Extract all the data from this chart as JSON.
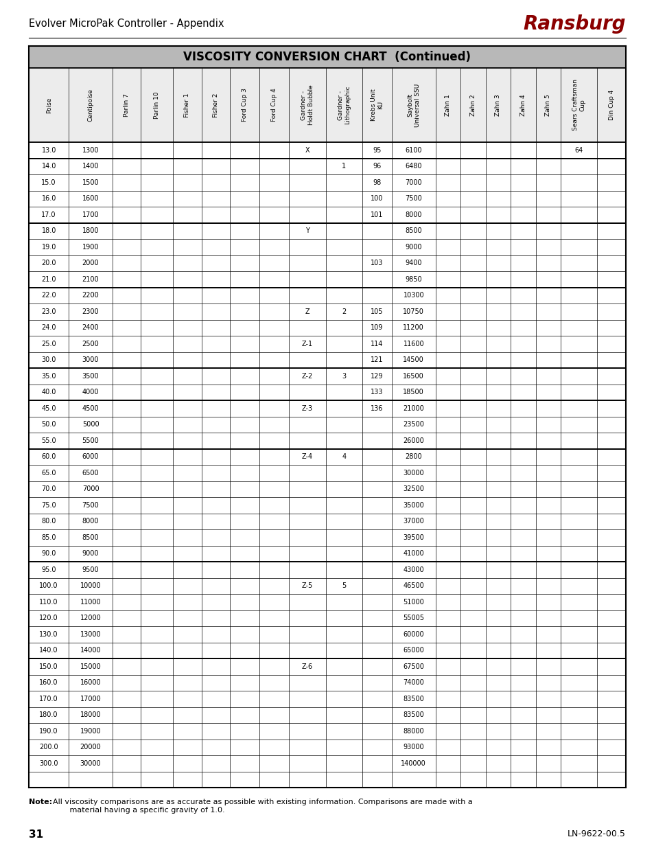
{
  "title": "VISCOSITY CONVERSION CHART  (Continued)",
  "header_bg": "#b8b8b8",
  "page_title": "Evolver MicroPak Controller - Appendix",
  "brand": "Ransburg",
  "page_num": "31",
  "doc_num": "LN-9622-00.5",
  "note_bold": "Note:",
  "note_rest": "  All viscosity comparisons are as accurate as possible with existing information. Comparisons are made with a\n         material having a specific gravity of 1.0.",
  "columns": [
    "Poise",
    "Centipoise",
    "Parlin 7",
    "Parlin 10",
    "Fisher 1",
    "Fisher 2",
    "Ford Cup 3",
    "Ford Cup 4",
    "Gardner -\nHoldt Bubble",
    "Gardner -\nLithographic",
    "Krebs Unit\nKU",
    "Saybolt\nUniversal SSU",
    "Zahn 1",
    "Zahn 2",
    "Zahn 3",
    "Zahn 4",
    "Zahn 5",
    "Sears Craftsman\nCup",
    "Din Cup 4"
  ],
  "col_widths_rel": [
    1.15,
    1.25,
    0.82,
    0.92,
    0.82,
    0.82,
    0.85,
    0.85,
    1.05,
    1.05,
    0.85,
    1.25,
    0.72,
    0.72,
    0.72,
    0.72,
    0.72,
    1.05,
    0.82
  ],
  "rows": [
    [
      "13.0",
      "1300",
      "",
      "",
      "",
      "",
      "",
      "",
      "X",
      "",
      "95",
      "6100",
      "",
      "",
      "",
      "",
      "",
      "64",
      ""
    ],
    [
      "14.0",
      "1400",
      "",
      "",
      "",
      "",
      "",
      "",
      "",
      "1",
      "96",
      "6480",
      "",
      "",
      "",
      "",
      "",
      "",
      ""
    ],
    [
      "15.0",
      "1500",
      "",
      "",
      "",
      "",
      "",
      "",
      "",
      "",
      "98",
      "7000",
      "",
      "",
      "",
      "",
      "",
      "",
      ""
    ],
    [
      "16.0",
      "1600",
      "",
      "",
      "",
      "",
      "",
      "",
      "",
      "",
      "100",
      "7500",
      "",
      "",
      "",
      "",
      "",
      "",
      ""
    ],
    [
      "17.0",
      "1700",
      "",
      "",
      "",
      "",
      "",
      "",
      "",
      "",
      "101",
      "8000",
      "",
      "",
      "",
      "",
      "",
      "",
      ""
    ],
    [
      "18.0",
      "1800",
      "",
      "",
      "",
      "",
      "",
      "",
      "Y",
      "",
      "",
      "8500",
      "",
      "",
      "",
      "",
      "",
      "",
      ""
    ],
    [
      "19.0",
      "1900",
      "",
      "",
      "",
      "",
      "",
      "",
      "",
      "",
      "",
      "9000",
      "",
      "",
      "",
      "",
      "",
      "",
      ""
    ],
    [
      "20.0",
      "2000",
      "",
      "",
      "",
      "",
      "",
      "",
      "",
      "",
      "103",
      "9400",
      "",
      "",
      "",
      "",
      "",
      "",
      ""
    ],
    [
      "21.0",
      "2100",
      "",
      "",
      "",
      "",
      "",
      "",
      "",
      "",
      "",
      "9850",
      "",
      "",
      "",
      "",
      "",
      "",
      ""
    ],
    [
      "22.0",
      "2200",
      "",
      "",
      "",
      "",
      "",
      "",
      "",
      "",
      "",
      "10300",
      "",
      "",
      "",
      "",
      "",
      "",
      ""
    ],
    [
      "23.0",
      "2300",
      "",
      "",
      "",
      "",
      "",
      "",
      "Z",
      "2",
      "105",
      "10750",
      "",
      "",
      "",
      "",
      "",
      "",
      ""
    ],
    [
      "24.0",
      "2400",
      "",
      "",
      "",
      "",
      "",
      "",
      "",
      "",
      "109",
      "11200",
      "",
      "",
      "",
      "",
      "",
      "",
      ""
    ],
    [
      "25.0",
      "2500",
      "",
      "",
      "",
      "",
      "",
      "",
      "Z-1",
      "",
      "114",
      "11600",
      "",
      "",
      "",
      "",
      "",
      "",
      ""
    ],
    [
      "30.0",
      "3000",
      "",
      "",
      "",
      "",
      "",
      "",
      "",
      "",
      "121",
      "14500",
      "",
      "",
      "",
      "",
      "",
      "",
      ""
    ],
    [
      "35.0",
      "3500",
      "",
      "",
      "",
      "",
      "",
      "",
      "Z-2",
      "3",
      "129",
      "16500",
      "",
      "",
      "",
      "",
      "",
      "",
      ""
    ],
    [
      "40.0",
      "4000",
      "",
      "",
      "",
      "",
      "",
      "",
      "",
      "",
      "133",
      "18500",
      "",
      "",
      "",
      "",
      "",
      "",
      ""
    ],
    [
      "45.0",
      "4500",
      "",
      "",
      "",
      "",
      "",
      "",
      "Z-3",
      "",
      "136",
      "21000",
      "",
      "",
      "",
      "",
      "",
      "",
      ""
    ],
    [
      "50.0",
      "5000",
      "",
      "",
      "",
      "",
      "",
      "",
      "",
      "",
      "",
      "23500",
      "",
      "",
      "",
      "",
      "",
      "",
      ""
    ],
    [
      "55.0",
      "5500",
      "",
      "",
      "",
      "",
      "",
      "",
      "",
      "",
      "",
      "26000",
      "",
      "",
      "",
      "",
      "",
      "",
      ""
    ],
    [
      "60.0",
      "6000",
      "",
      "",
      "",
      "",
      "",
      "",
      "Z-4",
      "4",
      "",
      "2800",
      "",
      "",
      "",
      "",
      "",
      "",
      ""
    ],
    [
      "65.0",
      "6500",
      "",
      "",
      "",
      "",
      "",
      "",
      "",
      "",
      "",
      "30000",
      "",
      "",
      "",
      "",
      "",
      "",
      ""
    ],
    [
      "70.0",
      "7000",
      "",
      "",
      "",
      "",
      "",
      "",
      "",
      "",
      "",
      "32500",
      "",
      "",
      "",
      "",
      "",
      "",
      ""
    ],
    [
      "75.0",
      "7500",
      "",
      "",
      "",
      "",
      "",
      "",
      "",
      "",
      "",
      "35000",
      "",
      "",
      "",
      "",
      "",
      "",
      ""
    ],
    [
      "80.0",
      "8000",
      "",
      "",
      "",
      "",
      "",
      "",
      "",
      "",
      "",
      "37000",
      "",
      "",
      "",
      "",
      "",
      "",
      ""
    ],
    [
      "85.0",
      "8500",
      "",
      "",
      "",
      "",
      "",
      "",
      "",
      "",
      "",
      "39500",
      "",
      "",
      "",
      "",
      "",
      "",
      ""
    ],
    [
      "90.0",
      "9000",
      "",
      "",
      "",
      "",
      "",
      "",
      "",
      "",
      "",
      "41000",
      "",
      "",
      "",
      "",
      "",
      "",
      ""
    ],
    [
      "95.0",
      "9500",
      "",
      "",
      "",
      "",
      "",
      "",
      "",
      "",
      "",
      "43000",
      "",
      "",
      "",
      "",
      "",
      "",
      ""
    ],
    [
      "100.0",
      "10000",
      "",
      "",
      "",
      "",
      "",
      "",
      "Z-5",
      "5",
      "",
      "46500",
      "",
      "",
      "",
      "",
      "",
      "",
      ""
    ],
    [
      "110.0",
      "11000",
      "",
      "",
      "",
      "",
      "",
      "",
      "",
      "",
      "",
      "51000",
      "",
      "",
      "",
      "",
      "",
      "",
      ""
    ],
    [
      "120.0",
      "12000",
      "",
      "",
      "",
      "",
      "",
      "",
      "",
      "",
      "",
      "55005",
      "",
      "",
      "",
      "",
      "",
      "",
      ""
    ],
    [
      "130.0",
      "13000",
      "",
      "",
      "",
      "",
      "",
      "",
      "",
      "",
      "",
      "60000",
      "",
      "",
      "",
      "",
      "",
      "",
      ""
    ],
    [
      "140.0",
      "14000",
      "",
      "",
      "",
      "",
      "",
      "",
      "",
      "",
      "",
      "65000",
      "",
      "",
      "",
      "",
      "",
      "",
      ""
    ],
    [
      "150.0",
      "15000",
      "",
      "",
      "",
      "",
      "",
      "",
      "Z-6",
      "",
      "",
      "67500",
      "",
      "",
      "",
      "",
      "",
      "",
      ""
    ],
    [
      "160.0",
      "16000",
      "",
      "",
      "",
      "",
      "",
      "",
      "",
      "",
      "",
      "74000",
      "",
      "",
      "",
      "",
      "",
      "",
      ""
    ],
    [
      "170.0",
      "17000",
      "",
      "",
      "",
      "",
      "",
      "",
      "",
      "",
      "",
      "83500",
      "",
      "",
      "",
      "",
      "",
      "",
      ""
    ],
    [
      "180.0",
      "18000",
      "",
      "",
      "",
      "",
      "",
      "",
      "",
      "",
      "",
      "83500",
      "",
      "",
      "",
      "",
      "",
      "",
      ""
    ],
    [
      "190.0",
      "19000",
      "",
      "",
      "",
      "",
      "",
      "",
      "",
      "",
      "",
      "88000",
      "",
      "",
      "",
      "",
      "",
      "",
      ""
    ],
    [
      "200.0",
      "20000",
      "",
      "",
      "",
      "",
      "",
      "",
      "",
      "",
      "",
      "93000",
      "",
      "",
      "",
      "",
      "",
      "",
      ""
    ],
    [
      "300.0",
      "30000",
      "",
      "",
      "",
      "",
      "",
      "",
      "",
      "",
      "",
      "140000",
      "",
      "",
      "",
      "",
      "",
      "",
      ""
    ],
    [
      "",
      "",
      "",
      "",
      "",
      "",
      "",
      "",
      "",
      "",
      "",
      "",
      "",
      "",
      "",
      "",
      "",
      "",
      ""
    ]
  ],
  "thick_border_after_rows": [
    1,
    5,
    9,
    14,
    16,
    19,
    26,
    32
  ]
}
